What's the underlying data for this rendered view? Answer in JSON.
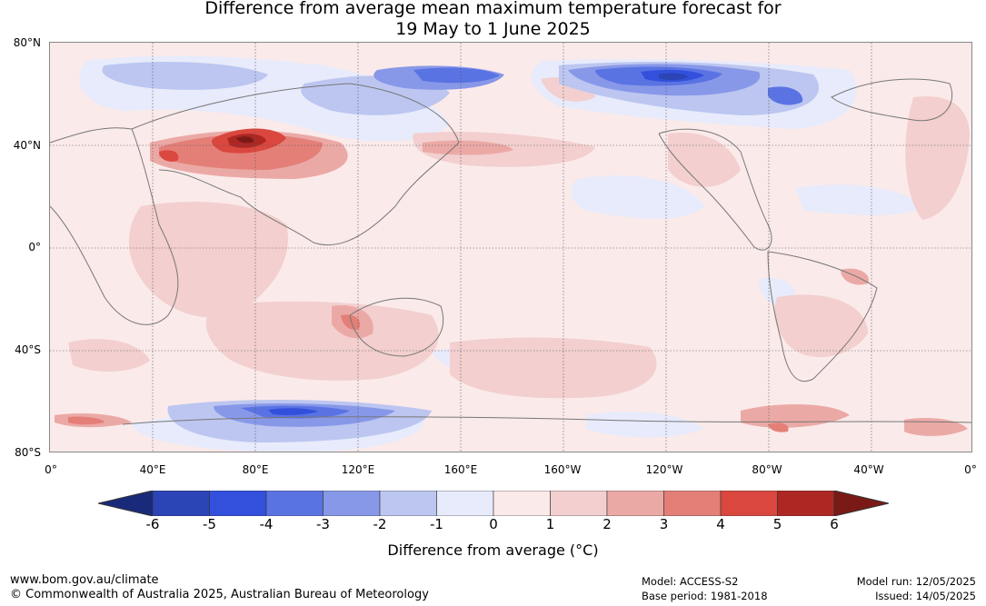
{
  "title_line1": "Difference from average mean maximum temperature forecast for",
  "title_line2": "19 May to 1 June 2025",
  "lat_labels": [
    "80°N",
    "40°N",
    "0°",
    "40°S",
    "80°S"
  ],
  "lon_labels": [
    "0°",
    "40°E",
    "80°E",
    "120°E",
    "160°E",
    "160°W",
    "120°W",
    "80°W",
    "40°W",
    "0°"
  ],
  "colorbar": {
    "ticks": [
      "-6",
      "-5",
      "-4",
      "-3",
      "-2",
      "-1",
      "0",
      "1",
      "2",
      "3",
      "4",
      "5",
      "6"
    ],
    "colors": [
      "#1a2a7a",
      "#2b44b6",
      "#3350dd",
      "#5a73e3",
      "#8898e8",
      "#bcc6f0",
      "#e7ebfb",
      "#fbeaea",
      "#f3cfcf",
      "#eba9a6",
      "#e47f78",
      "#d9473f",
      "#ad2723",
      "#7a1a17"
    ],
    "label": "Difference from average (°C)"
  },
  "footer": {
    "url": "www.bom.gov.au/climate",
    "copyright": "© Commonwealth of Australia 2025, Australian Bureau of Meteorology",
    "model": "Model: ACCESS-S2",
    "base_period": "Base period: 1981-2018",
    "model_run": "Model run: 12/05/2025",
    "issued": "Issued: 14/05/2025"
  }
}
